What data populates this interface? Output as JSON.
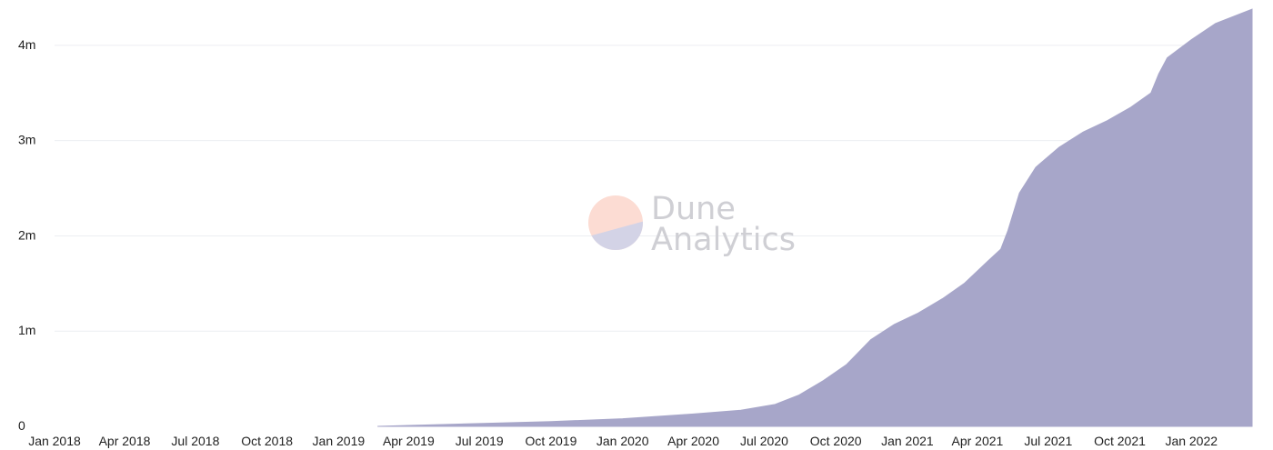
{
  "chart_data": {
    "type": "area",
    "title": "",
    "xlabel": "",
    "ylabel": "",
    "color": "#a7a6c9",
    "grid": true,
    "xlim": [
      "2018-01-01",
      "2022-03-20"
    ],
    "ylim": [
      0,
      4400000
    ],
    "y_ticks": [
      {
        "value": 0,
        "label": "0"
      },
      {
        "value": 1000000,
        "label": "1m"
      },
      {
        "value": 2000000,
        "label": "2m"
      },
      {
        "value": 3000000,
        "label": "3m"
      },
      {
        "value": 4000000,
        "label": "4m"
      }
    ],
    "x_ticks": [
      {
        "date": "2018-01-01",
        "label": "Jan 2018"
      },
      {
        "date": "2018-04-01",
        "label": "Apr 2018"
      },
      {
        "date": "2018-07-01",
        "label": "Jul 2018"
      },
      {
        "date": "2018-10-01",
        "label": "Oct 2018"
      },
      {
        "date": "2019-01-01",
        "label": "Jan 2019"
      },
      {
        "date": "2019-04-01",
        "label": "Apr 2019"
      },
      {
        "date": "2019-07-01",
        "label": "Jul 2019"
      },
      {
        "date": "2019-10-01",
        "label": "Oct 2019"
      },
      {
        "date": "2020-01-01",
        "label": "Jan 2020"
      },
      {
        "date": "2020-04-01",
        "label": "Apr 2020"
      },
      {
        "date": "2020-07-01",
        "label": "Jul 2020"
      },
      {
        "date": "2020-10-01",
        "label": "Oct 2020"
      },
      {
        "date": "2021-01-01",
        "label": "Jan 2021"
      },
      {
        "date": "2021-04-01",
        "label": "Apr 2021"
      },
      {
        "date": "2021-07-01",
        "label": "Jul 2021"
      },
      {
        "date": "2021-10-01",
        "label": "Oct 2021"
      },
      {
        "date": "2022-01-01",
        "label": "Jan 2022"
      }
    ],
    "series": [
      {
        "x": [
          "2019-02-20",
          "2019-04-01",
          "2019-07-01",
          "2019-10-01",
          "2020-01-01",
          "2020-04-01",
          "2020-06-01",
          "2020-07-15",
          "2020-08-15",
          "2020-09-15",
          "2020-10-15",
          "2020-11-15",
          "2020-12-15",
          "2021-01-15",
          "2021-02-15",
          "2021-03-15",
          "2021-04-15",
          "2021-05-01",
          "2021-05-10",
          "2021-05-25",
          "2021-06-15",
          "2021-07-15",
          "2021-08-15",
          "2021-09-15",
          "2021-10-15",
          "2021-11-10",
          "2021-11-20",
          "2021-12-01",
          "2022-01-01",
          "2022-02-01",
          "2022-03-20"
        ],
        "values": [
          0,
          10000,
          30000,
          50000,
          80000,
          130000,
          170000,
          230000,
          330000,
          480000,
          650000,
          910000,
          1070000,
          1190000,
          1340000,
          1500000,
          1740000,
          1860000,
          2050000,
          2450000,
          2720000,
          2930000,
          3090000,
          3210000,
          3350000,
          3500000,
          3700000,
          3870000,
          4060000,
          4230000,
          4380000
        ]
      }
    ]
  },
  "watermark": {
    "line1": "Dune",
    "line2": "Analytics",
    "colors": {
      "top": "#fcdcd3",
      "bottom": "#d3d3e6"
    }
  }
}
